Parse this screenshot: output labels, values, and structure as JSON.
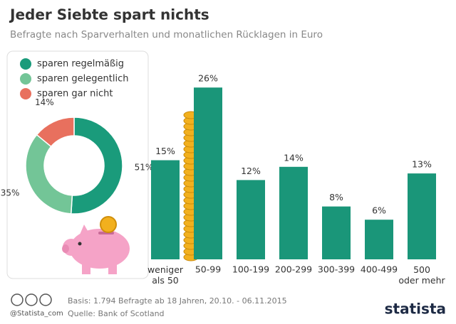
{
  "header": {
    "title": "Jeder Siebte spart nichts",
    "subtitle": "Befragte nach Sparverhalten und monatlichen Rücklagen in Euro"
  },
  "chart_data": [
    {
      "type": "pie",
      "categories": [
        "sparen regelmäßig",
        "sparen gelegentlich",
        "sparen gar nicht"
      ],
      "values": [
        51,
        35,
        14
      ],
      "value_labels": [
        "51%",
        "35%",
        "14%"
      ],
      "colors": [
        "#1a9b7b",
        "#73c597",
        "#e8705e"
      ]
    },
    {
      "type": "bar",
      "categories": [
        "weniger als 50",
        "50-99",
        "100-199",
        "200-299",
        "300-399",
        "400-499",
        "500 oder mehr"
      ],
      "values": [
        15,
        26,
        12,
        14,
        8,
        6,
        13
      ],
      "value_labels": [
        "15%",
        "26%",
        "12%",
        "14%",
        "8%",
        "6%",
        "13%"
      ],
      "color": "#1a9679"
    }
  ],
  "footer": {
    "handle": "@Statista_com",
    "basis": "Basis: 1.794 Befragte ab 18 Jahren, 20.10. - 06.11.2015",
    "source": "Quelle: Bank of Scotland",
    "brand": "statista"
  }
}
